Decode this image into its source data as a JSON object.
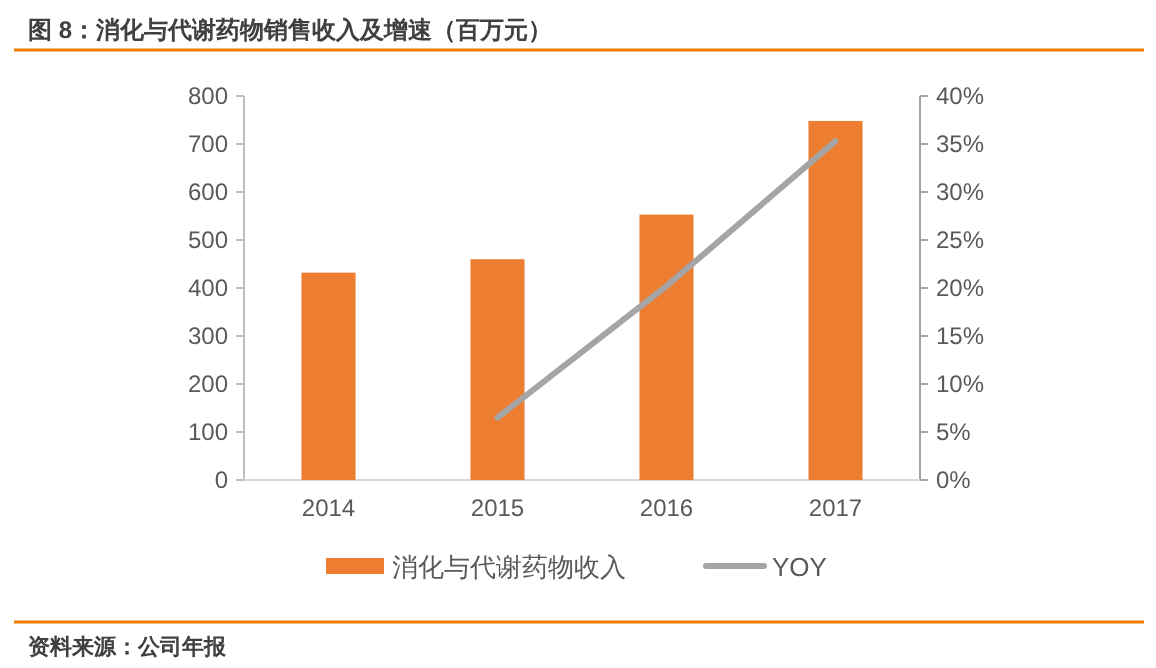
{
  "chart_data": {
    "type": "bar",
    "title": "图 8：消化与代谢药物销售收入及增速（百万元）",
    "categories": [
      "2014",
      "2015",
      "2016",
      "2017"
    ],
    "series": [
      {
        "name": "消化与代谢药物收入",
        "color": "#ed7d31",
        "values": [
          432,
          460,
          553,
          748
        ]
      },
      {
        "name": "YOY",
        "type": "line",
        "axis": "y2",
        "color": "#a5a5a5",
        "values": [
          null,
          6.5,
          20.2,
          35.3
        ]
      }
    ],
    "ylim": [
      0,
      800
    ],
    "yticks": [
      0,
      100,
      200,
      300,
      400,
      500,
      600,
      700,
      800
    ],
    "y2lim": [
      0,
      40
    ],
    "y2ticks": [
      {
        "value": 0,
        "label": "0%"
      },
      {
        "value": 5,
        "label": "5%"
      },
      {
        "value": 10,
        "label": "10%"
      },
      {
        "value": 15,
        "label": "15%"
      },
      {
        "value": 20,
        "label": "20%"
      },
      {
        "value": 25,
        "label": "25%"
      },
      {
        "value": 30,
        "label": "30%"
      },
      {
        "value": 35,
        "label": "35%"
      },
      {
        "value": 40,
        "label": "40%"
      }
    ],
    "legend": "bottom",
    "grid": false,
    "annotations": [
      "资料来源：公司年报"
    ]
  }
}
